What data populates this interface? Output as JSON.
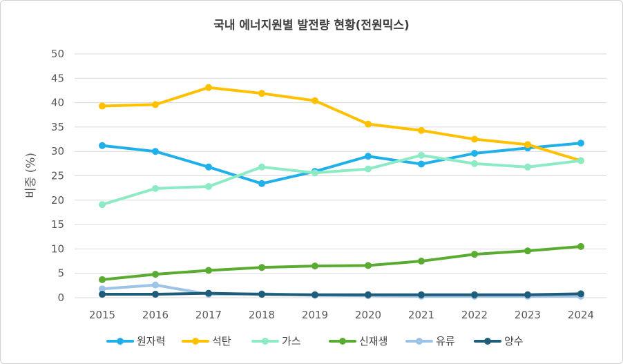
{
  "chart_data": {
    "type": "line",
    "title": "국내 에너지원별 발전량 현황(전원믹스)",
    "xlabel": "",
    "ylabel": "비중 (%)",
    "ylim": [
      0,
      50
    ],
    "yticks": [
      0,
      5,
      10,
      15,
      20,
      25,
      30,
      35,
      40,
      45,
      50
    ],
    "categories": [
      "2015",
      "2016",
      "2017",
      "2018",
      "2019",
      "2020",
      "2021",
      "2022",
      "2023",
      "2024"
    ],
    "grid": true,
    "legend_position": "bottom",
    "series": [
      {
        "name": "원자력",
        "color": "#1fb0ea",
        "values": [
          31.2,
          30.0,
          26.8,
          23.4,
          25.9,
          29.0,
          27.4,
          29.6,
          30.7,
          31.7
        ]
      },
      {
        "name": "석탄",
        "color": "#ffc000",
        "values": [
          39.3,
          39.6,
          43.1,
          41.9,
          40.4,
          35.6,
          34.3,
          32.5,
          31.4,
          28.1
        ]
      },
      {
        "name": "가스",
        "color": "#8cebc4",
        "values": [
          19.1,
          22.4,
          22.8,
          26.8,
          25.6,
          26.4,
          29.2,
          27.5,
          26.8,
          28.1
        ]
      },
      {
        "name": "신재생",
        "color": "#5aab32",
        "values": [
          3.7,
          4.8,
          5.6,
          6.2,
          6.5,
          6.6,
          7.5,
          8.9,
          9.6,
          10.5
        ]
      },
      {
        "name": "유류",
        "color": "#9dc3e6",
        "values": [
          1.8,
          2.6,
          0.7,
          0.8,
          0.5,
          0.4,
          0.3,
          0.3,
          0.3,
          0.3
        ]
      },
      {
        "name": "양수",
        "color": "#1f5c7a",
        "values": [
          0.7,
          0.7,
          0.9,
          0.7,
          0.6,
          0.6,
          0.6,
          0.6,
          0.6,
          0.8
        ]
      }
    ]
  }
}
